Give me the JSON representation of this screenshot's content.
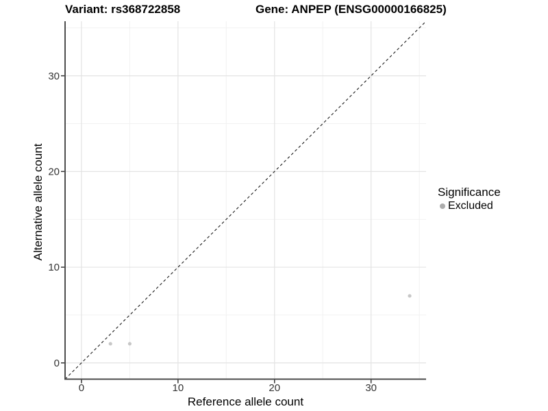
{
  "titles": {
    "variant": "Variant: rs368722858",
    "gene": "Gene: ANPEP (ENSG00000166825)"
  },
  "legend": {
    "title": "Significance",
    "items": [
      {
        "label": "Excluded",
        "color": "#adadad"
      }
    ]
  },
  "colors": {
    "background": "#ffffff",
    "axis_line": "#4d4d4d",
    "tick_mark": "#333333",
    "tick_label": "#333333",
    "major_grid": "#e3e3e3",
    "minor_grid": "#f1f1f1",
    "point": "#c7c7c7",
    "reference_line": "#1a1a1a"
  },
  "chart_data": {
    "type": "scatter",
    "title": "Variant: rs368722858  /  Gene: ANPEP (ENSG00000166825)",
    "xlabel": "Reference allele count",
    "ylabel": "Alternative allele count",
    "xlim": [
      -1.7,
      35.7
    ],
    "ylim": [
      -1.7,
      35.7
    ],
    "x_ticks": [
      0,
      10,
      20,
      30
    ],
    "y_ticks": [
      0,
      10,
      20,
      30
    ],
    "x_minor_ticks": [
      5,
      15,
      25,
      35
    ],
    "y_minor_ticks": [
      5,
      15,
      25,
      35
    ],
    "grid": true,
    "legend_position": "right",
    "reference_line": {
      "type": "identity",
      "style": "dashed",
      "equation": "y = x"
    },
    "series": [
      {
        "name": "Excluded",
        "points": [
          [
            3,
            2
          ],
          [
            5,
            2
          ],
          [
            34,
            7
          ]
        ]
      }
    ]
  }
}
